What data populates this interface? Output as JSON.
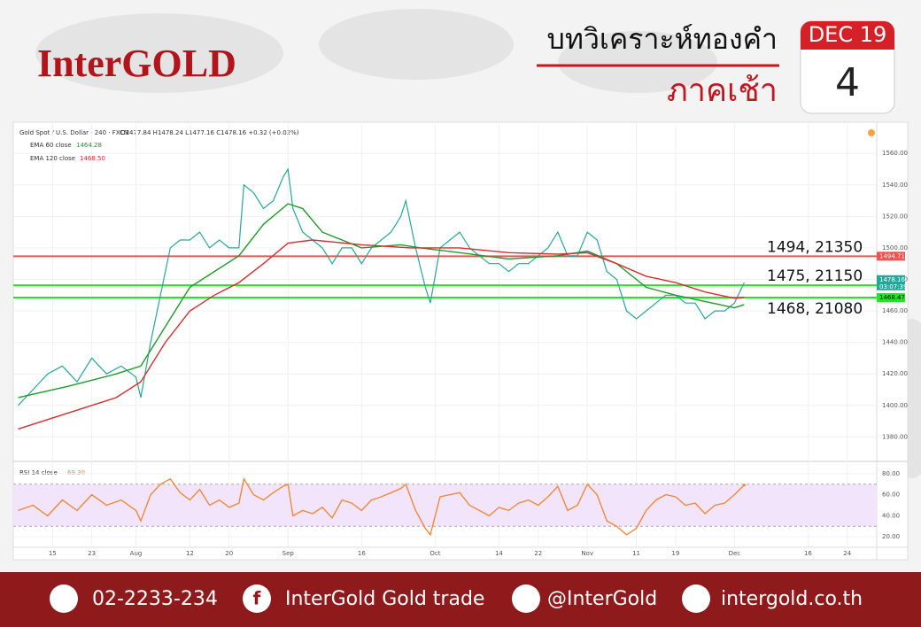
{
  "header": {
    "brand": "InterGOLD",
    "title": "บทวิเคราะห์ทองคำ",
    "subtitle": "ภาคเช้า",
    "month": "DEC 19",
    "day": "4"
  },
  "chart_data": [
    {
      "type": "line",
      "title": "Gold Spot / U.S. Dollar · 240 · FXCM",
      "quote": "O1477.84 H1478.24 L1477.16 C1478.16 +0.32 (+0.02%)",
      "xlim": [
        -1,
        175
      ],
      "ylim": [
        1365,
        1577
      ],
      "yticks": [
        {
          "value": 1380,
          "label": "1380.00"
        },
        {
          "value": 1400,
          "label": "1400.00"
        },
        {
          "value": 1420,
          "label": "1420.00"
        },
        {
          "value": 1440,
          "label": "1440.00"
        },
        {
          "value": 1460,
          "label": "1460.00"
        },
        {
          "value": 1480,
          "label": "1480.00"
        },
        {
          "value": 1500,
          "label": "1500.00"
        },
        {
          "value": 1520,
          "label": "1520.00"
        },
        {
          "value": 1540,
          "label": "1540.00"
        },
        {
          "value": 1560,
          "label": "1560.00"
        }
      ],
      "grid": true,
      "series": [
        {
          "color": "#26a69a",
          "x": [
            0,
            3,
            6,
            9,
            12,
            15,
            18,
            21,
            24,
            25,
            27,
            29,
            31,
            33,
            35,
            37,
            39,
            41,
            43,
            45,
            46,
            48,
            50,
            52,
            54,
            55,
            56,
            58,
            60,
            62,
            64,
            66,
            68,
            70,
            72,
            74,
            76,
            78,
            79,
            81,
            83,
            84,
            86,
            88,
            90,
            92,
            94,
            96,
            98,
            100,
            102,
            104,
            106,
            108,
            110,
            112,
            114,
            116,
            118,
            120,
            122,
            124,
            126,
            128,
            130,
            132,
            134,
            136,
            138,
            140,
            142,
            144,
            146,
            148
          ],
          "values": [
            1400,
            1410,
            1420,
            1425,
            1415,
            1430,
            1420,
            1425,
            1418,
            1405,
            1440,
            1470,
            1500,
            1505,
            1505,
            1510,
            1500,
            1505,
            1500,
            1500,
            1540,
            1535,
            1525,
            1530,
            1545,
            1550,
            1525,
            1510,
            1505,
            1500,
            1490,
            1500,
            1500,
            1490,
            1500,
            1505,
            1510,
            1520,
            1530,
            1500,
            1475,
            1465,
            1500,
            1505,
            1510,
            1500,
            1495,
            1490,
            1490,
            1485,
            1490,
            1490,
            1495,
            1500,
            1510,
            1495,
            1495,
            1510,
            1505,
            1485,
            1480,
            1460,
            1455,
            1460,
            1465,
            1470,
            1470,
            1465,
            1465,
            1455,
            1460,
            1460,
            1465,
            1478
          ]
        },
        {
          "name": "EMA 60 close",
          "color": "#1e9a2a",
          "last": 1464.28,
          "x": [
            0,
            10,
            20,
            25,
            30,
            35,
            40,
            45,
            50,
            55,
            58,
            62,
            70,
            78,
            82,
            90,
            100,
            110,
            116,
            122,
            128,
            134,
            140,
            146,
            148
          ],
          "values": [
            1405,
            1412,
            1420,
            1425,
            1450,
            1475,
            1485,
            1495,
            1515,
            1528,
            1525,
            1510,
            1500,
            1502,
            1500,
            1497,
            1493,
            1495,
            1498,
            1490,
            1475,
            1470,
            1466,
            1462,
            1464
          ]
        },
        {
          "name": "EMA 120 close",
          "color": "#d32f2f",
          "last": {
            "value": 1468.5,
            "label": "1468.50"
          },
          "x": [
            0,
            10,
            20,
            25,
            30,
            35,
            40,
            45,
            50,
            55,
            60,
            70,
            80,
            90,
            100,
            110,
            116,
            122,
            128,
            134,
            140,
            146,
            148
          ],
          "values": [
            1385,
            1395,
            1405,
            1415,
            1440,
            1460,
            1470,
            1478,
            1490,
            1503,
            1505,
            1502,
            1500,
            1500,
            1497,
            1496,
            1497,
            1490,
            1482,
            1478,
            1472,
            1468,
            1468.5
          ]
        }
      ],
      "hlines": [
        {
          "value": 1494.71,
          "color": "#ef5350",
          "annotation": "1494, 21350"
        },
        {
          "value": 1476.28,
          "color": "#22e622",
          "annotation": "1475, 21150"
        },
        {
          "value": 1468.47,
          "color": "#22e622",
          "annotation": "1468, 21080"
        }
      ],
      "last_price": 1478.16,
      "countdown": "03:07:39"
    },
    {
      "type": "line",
      "title": "RSI 14 close",
      "last": 69.3,
      "last_label": "69.30",
      "xlim": [
        -1,
        175
      ],
      "ylim": [
        10,
        90
      ],
      "yticks": [
        {
          "value": 20,
          "label": "20.00"
        },
        {
          "value": 40,
          "label": "40.00"
        },
        {
          "value": 60,
          "label": "60.00"
        },
        {
          "value": 80,
          "label": "80.00"
        }
      ],
      "band": [
        30,
        70
      ],
      "xticks": [
        {
          "value": 7,
          "label": "15"
        },
        {
          "value": 15,
          "label": "23"
        },
        {
          "value": 24,
          "label": "Aug"
        },
        {
          "value": 35,
          "label": "12"
        },
        {
          "value": 43,
          "label": "20"
        },
        {
          "value": 55,
          "label": "Sep"
        },
        {
          "value": 70,
          "label": "16"
        },
        {
          "value": 85,
          "label": "Oct"
        },
        {
          "value": 98,
          "label": "14"
        },
        {
          "value": 106,
          "label": "22"
        },
        {
          "value": 116,
          "label": "Nov"
        },
        {
          "value": 126,
          "label": "11"
        },
        {
          "value": 134,
          "label": "19"
        },
        {
          "value": 146,
          "label": "Dec"
        },
        {
          "value": 161,
          "label": "16"
        },
        {
          "value": 169,
          "label": "24"
        }
      ],
      "series": [
        {
          "color": "#ef8a3c",
          "x": [
            0,
            3,
            6,
            9,
            12,
            15,
            18,
            21,
            24,
            25,
            27,
            29,
            31,
            33,
            35,
            37,
            39,
            41,
            43,
            45,
            46,
            48,
            50,
            52,
            54,
            55,
            56,
            58,
            60,
            62,
            64,
            66,
            68,
            70,
            72,
            74,
            76,
            78,
            79,
            81,
            83,
            84,
            86,
            88,
            90,
            92,
            94,
            96,
            98,
            100,
            102,
            104,
            106,
            108,
            110,
            112,
            114,
            116,
            118,
            120,
            122,
            124,
            126,
            128,
            130,
            132,
            134,
            136,
            138,
            140,
            142,
            144,
            146,
            148
          ],
          "values": [
            45,
            50,
            40,
            55,
            45,
            60,
            50,
            55,
            45,
            35,
            60,
            70,
            75,
            62,
            55,
            65,
            50,
            55,
            48,
            52,
            75,
            60,
            55,
            62,
            68,
            70,
            40,
            45,
            42,
            48,
            38,
            55,
            52,
            45,
            55,
            58,
            62,
            66,
            70,
            45,
            28,
            22,
            58,
            60,
            62,
            50,
            45,
            40,
            48,
            45,
            52,
            55,
            50,
            58,
            68,
            45,
            50,
            70,
            60,
            35,
            30,
            22,
            28,
            45,
            55,
            60,
            58,
            50,
            52,
            42,
            50,
            52,
            60,
            69.3
          ]
        }
      ]
    }
  ],
  "footer": {
    "phone": "02-2233-234",
    "facebook": "InterGold Gold trade",
    "line": "@InterGold",
    "web": "intergold.co.th"
  }
}
